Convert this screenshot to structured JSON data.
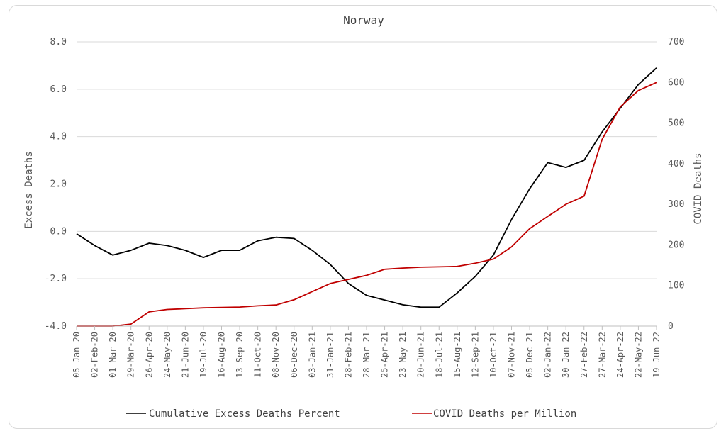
{
  "chart_data": {
    "type": "line",
    "title": "Norway",
    "ylabel_left": "Excess Deaths",
    "ylabel_right": "COVID Deaths",
    "ylim_left": [
      -4.0,
      8.0
    ],
    "ylim_right": [
      0,
      700
    ],
    "yticks_left": [
      "8.0",
      "6.0",
      "4.0",
      "2.0",
      "0.0",
      "-2.0",
      "-4.0"
    ],
    "yticks_right": [
      "700",
      "600",
      "500",
      "400",
      "300",
      "200",
      "100",
      "0"
    ],
    "grid": true,
    "legend_position": "bottom",
    "x_tick_labels": [
      "05-Jan-20",
      "02-Feb-20",
      "01-Mar-20",
      "29-Mar-20",
      "26-Apr-20",
      "24-May-20",
      "21-Jun-20",
      "19-Jul-20",
      "16-Aug-20",
      "13-Sep-20",
      "11-Oct-20",
      "08-Nov-20",
      "06-Dec-20",
      "03-Jan-21",
      "31-Jan-21",
      "28-Feb-21",
      "28-Mar-21",
      "25-Apr-21",
      "23-May-21",
      "20-Jun-21",
      "18-Jul-21",
      "15-Aug-21",
      "12-Sep-21",
      "10-Oct-21",
      "07-Nov-21",
      "05-Dec-21",
      "02-Jan-22",
      "30-Jan-22",
      "27-Feb-22",
      "27-Mar-22",
      "24-Apr-22",
      "22-May-22",
      "19-Jun-22"
    ],
    "x": [
      "05-Jan-20",
      "02-Feb-20",
      "01-Mar-20",
      "29-Mar-20",
      "26-Apr-20",
      "24-May-20",
      "21-Jun-20",
      "19-Jul-20",
      "16-Aug-20",
      "13-Sep-20",
      "11-Oct-20",
      "08-Nov-20",
      "06-Dec-20",
      "03-Jan-21",
      "31-Jan-21",
      "28-Feb-21",
      "28-Mar-21",
      "25-Apr-21",
      "23-May-21",
      "20-Jun-21",
      "18-Jul-21",
      "15-Aug-21",
      "12-Sep-21",
      "10-Oct-21",
      "07-Nov-21",
      "05-Dec-21",
      "02-Jan-22",
      "30-Jan-22",
      "27-Feb-22",
      "27-Mar-22",
      "24-Apr-22",
      "22-May-22",
      "19-Jun-22"
    ],
    "series": [
      {
        "name": "Cumulative Excess Deaths Percent",
        "axis": "left",
        "color": "#000000",
        "values": [
          -0.1,
          -0.6,
          -1.0,
          -0.8,
          -0.5,
          -0.6,
          -0.8,
          -1.1,
          -0.8,
          -0.8,
          -0.4,
          -0.25,
          -0.3,
          -0.8,
          -1.4,
          -2.2,
          -2.7,
          -2.9,
          -3.1,
          -3.2,
          -3.2,
          -2.6,
          -1.9,
          -1.0,
          0.5,
          1.8,
          2.9,
          2.7,
          3.0,
          4.2,
          5.2,
          6.2,
          6.9
        ]
      },
      {
        "name": "COVID Deaths per Million",
        "axis": "right",
        "color": "#c00000",
        "values": [
          0,
          0,
          0,
          5,
          35,
          41,
          43,
          45,
          46,
          47,
          50,
          52,
          65,
          85,
          105,
          115,
          125,
          140,
          143,
          145,
          146,
          147,
          155,
          165,
          195,
          240,
          270,
          300,
          320,
          460,
          540,
          580,
          600
        ]
      }
    ]
  }
}
